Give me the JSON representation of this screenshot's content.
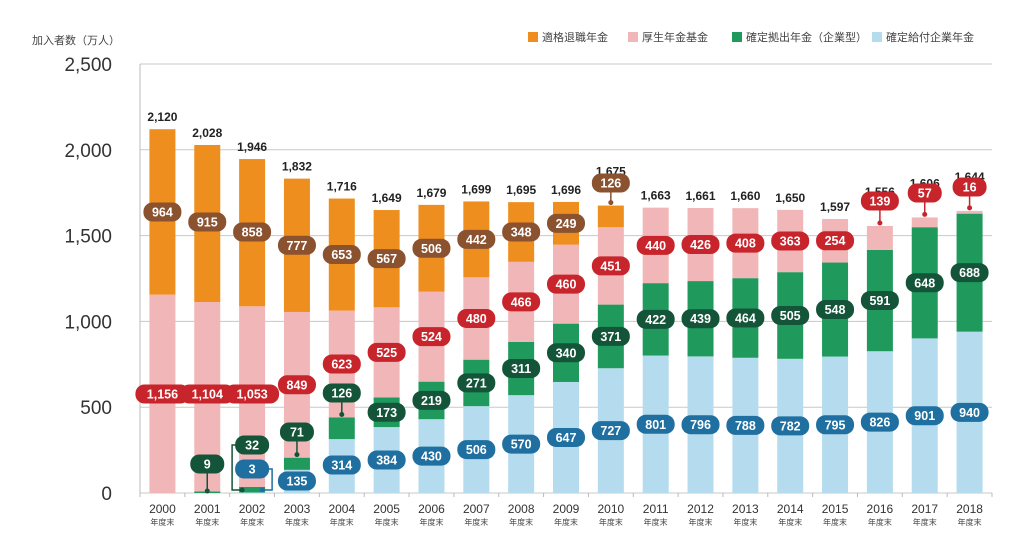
{
  "chart_data": {
    "type": "bar",
    "stacked": true,
    "title": "",
    "ylabel": "加入者数（万人）",
    "xlabel": "",
    "ylim": [
      0,
      2500
    ],
    "yticks": [
      0,
      500,
      1000,
      1500,
      2000,
      2500
    ],
    "ytick_labels": [
      "0",
      "500",
      "1,000",
      "1,500",
      "2,000",
      "2,500"
    ],
    "grid": true,
    "legend_position": "top-right",
    "categories": [
      "2000",
      "2001",
      "2002",
      "2003",
      "2004",
      "2005",
      "2006",
      "2007",
      "2008",
      "2009",
      "2010",
      "2011",
      "2012",
      "2013",
      "2014",
      "2015",
      "2016",
      "2017",
      "2018"
    ],
    "category_suffix": "年度末",
    "series": [
      {
        "name": "確定給付企業年金",
        "color": "#b5dcee",
        "label_color": "#1f6fa0",
        "values": [
          0,
          0,
          3,
          135,
          314,
          384,
          430,
          506,
          570,
          647,
          727,
          801,
          796,
          788,
          782,
          795,
          826,
          901,
          940
        ]
      },
      {
        "name": "確定拠出年金（企業型）",
        "color": "#1f9a5c",
        "label_color": "#14553a",
        "values": [
          0,
          9,
          32,
          71,
          126,
          173,
          219,
          271,
          311,
          340,
          371,
          422,
          439,
          464,
          505,
          548,
          591,
          648,
          688
        ]
      },
      {
        "name": "厚生年金基金",
        "color": "#f1b7b8",
        "label_color": "#c8242b",
        "values": [
          1156,
          1104,
          1053,
          849,
          623,
          525,
          524,
          480,
          466,
          460,
          451,
          440,
          426,
          408,
          363,
          254,
          139,
          57,
          16
        ]
      },
      {
        "name": "適格退職年金",
        "color": "#ee8e1f",
        "label_color": "#8b5230",
        "values": [
          964,
          915,
          858,
          777,
          653,
          567,
          506,
          442,
          348,
          249,
          126,
          0,
          0,
          0,
          0,
          0,
          0,
          0,
          0
        ]
      }
    ],
    "totals": [
      2120,
      2028,
      1946,
      1832,
      1716,
      1649,
      1679,
      1699,
      1695,
      1696,
      1675,
      1663,
      1661,
      1660,
      1650,
      1597,
      1556,
      1606,
      1644
    ],
    "total_labels": [
      "2,120",
      "2,028",
      "1,946",
      "1,832",
      "1,716",
      "1,649",
      "1,679",
      "1,699",
      "1,695",
      "1,696",
      "1,675",
      "1,663",
      "1,661",
      "1,660",
      "1,650",
      "1,597",
      "1,556",
      "1,606",
      "1,644"
    ],
    "value_labels": {
      "kakutei_kyufu": [
        "",
        "",
        "3",
        "135",
        "314",
        "384",
        "430",
        "506",
        "570",
        "647",
        "727",
        "801",
        "796",
        "788",
        "782",
        "795",
        "826",
        "901",
        "940"
      ],
      "kakutei_kyoshutsu": [
        "",
        "9",
        "32",
        "71",
        "126",
        "173",
        "219",
        "271",
        "311",
        "340",
        "371",
        "422",
        "439",
        "464",
        "505",
        "548",
        "591",
        "648",
        "688"
      ],
      "kosei_kikin": [
        "1,156",
        "1,104",
        "1,053",
        "849",
        "623",
        "525",
        "524",
        "480",
        "466",
        "460",
        "451",
        "440",
        "426",
        "408",
        "363",
        "254",
        "139",
        "57",
        "16"
      ],
      "tekikaku": [
        "964",
        "915",
        "858",
        "777",
        "653",
        "567",
        "506",
        "442",
        "348",
        "249",
        "126",
        "",
        "",
        "",
        "",
        "",
        "",
        "",
        ""
      ]
    }
  },
  "legend": {
    "items": [
      {
        "label": "適格退職年金",
        "color": "#ee8e1f"
      },
      {
        "label": "厚生年金基金",
        "color": "#f1b7b8"
      },
      {
        "label": "確定拠出年金（企業型）",
        "color": "#1f9a5c"
      },
      {
        "label": "確定給付企業年金",
        "color": "#b5dcee"
      }
    ]
  }
}
